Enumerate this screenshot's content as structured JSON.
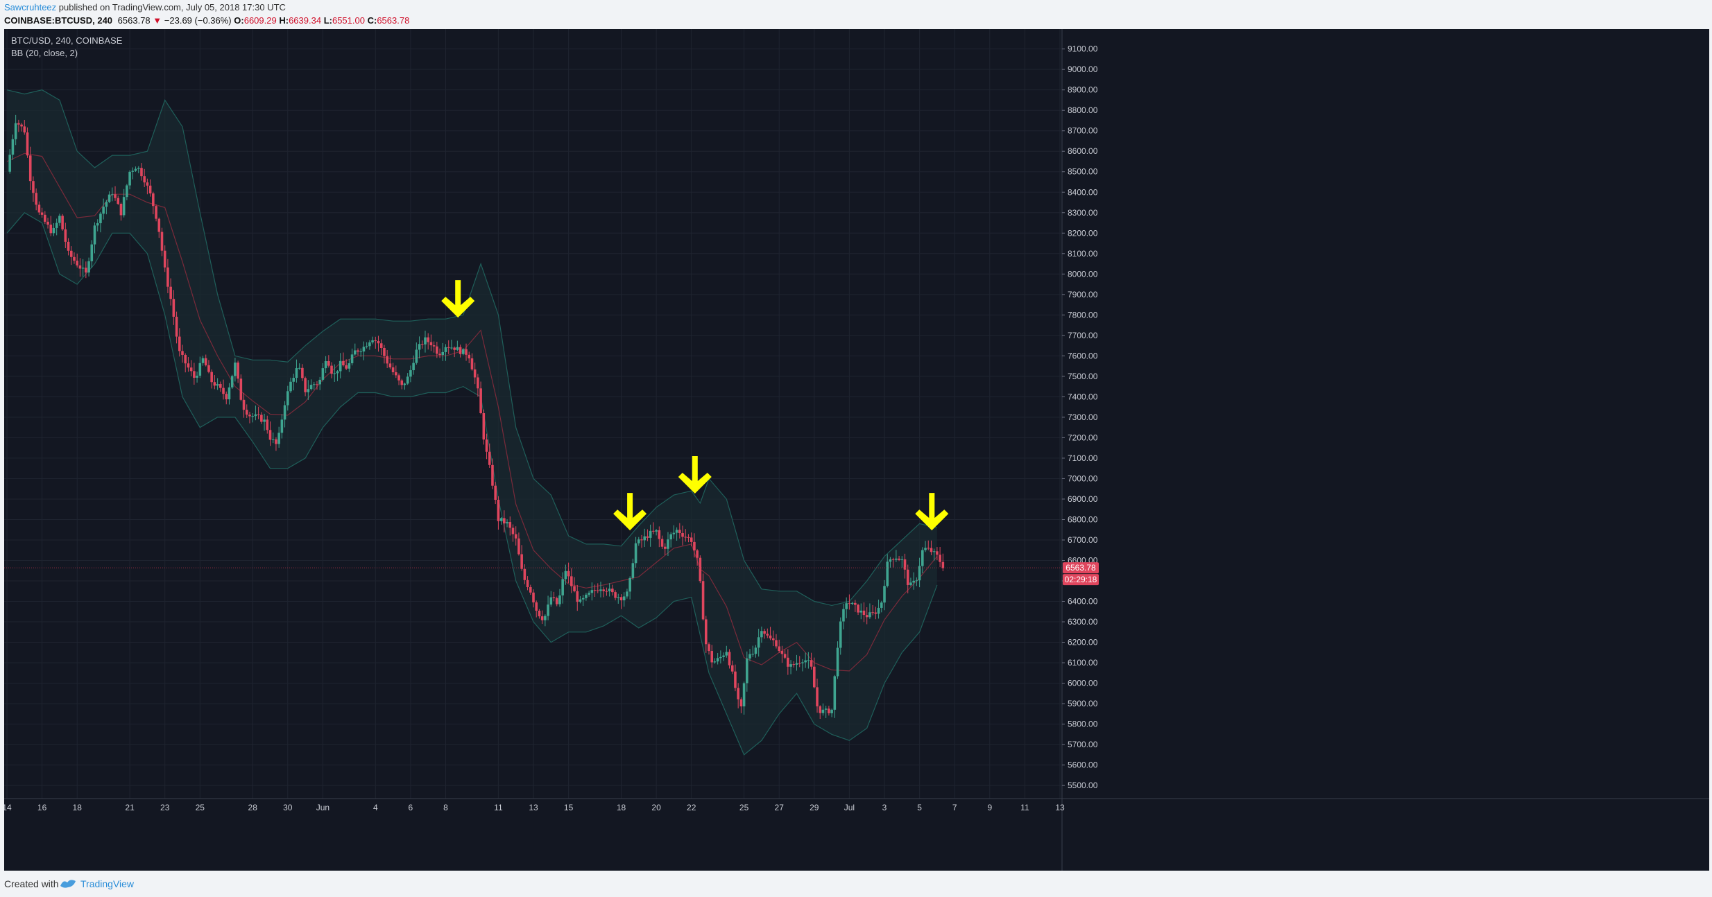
{
  "header": {
    "author": "Sawcruhteez",
    "published_text": "published on TradingView.com, July 05, 2018 17:30 UTC",
    "symbol_full": "COINBASE:BTCUSD, 240",
    "last_price": "6563.78",
    "change_arrow": "▼",
    "change": "−23.69 (−0.36%)",
    "o_label": "O:",
    "open": "6609.29",
    "h_label": "H:",
    "high": "6639.34",
    "l_label": "L:",
    "low": "6551.00",
    "c_label": "C:",
    "close": "6563.78"
  },
  "legend": {
    "symbol": "BTC/USD, 240, COINBASE",
    "indicator": "BB (20, close, 2)"
  },
  "footer": {
    "created_with": "Created with",
    "brand": "TradingView"
  },
  "colors": {
    "background": "#131722",
    "up": "#3fa590",
    "down": "#e0465e",
    "band_fill": "#1a2b30",
    "band_line": "#1f5f5a",
    "basis": "#7a2a3a",
    "arrow": "#ffff00",
    "price_line": "#b03048"
  },
  "price_tags": {
    "last": "6563.78",
    "countdown": "02:29:18"
  },
  "chart_data": {
    "type": "candlestick",
    "y_ticks": [
      5500,
      5600,
      5700,
      5800,
      5900,
      6000,
      6100,
      6200,
      6300,
      6400,
      6500,
      6600,
      6700,
      6800,
      6900,
      7000,
      7100,
      7200,
      7300,
      7400,
      7500,
      7600,
      7700,
      7800,
      7900,
      8000,
      8100,
      8200,
      8300,
      8400,
      8500,
      8600,
      8700,
      8800,
      8900,
      9000,
      9100
    ],
    "ylim": [
      5470,
      9170
    ],
    "x_labels": [
      {
        "label": "14",
        "day": 0
      },
      {
        "label": "16",
        "day": 2
      },
      {
        "label": "18",
        "day": 4
      },
      {
        "label": "21",
        "day": 7
      },
      {
        "label": "23",
        "day": 9
      },
      {
        "label": "25",
        "day": 11
      },
      {
        "label": "28",
        "day": 14
      },
      {
        "label": "30",
        "day": 16
      },
      {
        "label": "Jun",
        "day": 18
      },
      {
        "label": "4",
        "day": 21
      },
      {
        "label": "6",
        "day": 23
      },
      {
        "label": "8",
        "day": 25
      },
      {
        "label": "11",
        "day": 28
      },
      {
        "label": "13",
        "day": 30
      },
      {
        "label": "15",
        "day": 32
      },
      {
        "label": "18",
        "day": 35
      },
      {
        "label": "20",
        "day": 37
      },
      {
        "label": "22",
        "day": 39
      },
      {
        "label": "25",
        "day": 42
      },
      {
        "label": "27",
        "day": 44
      },
      {
        "label": "29",
        "day": 46
      },
      {
        "label": "Jul",
        "day": 48
      },
      {
        "label": "3",
        "day": 50
      },
      {
        "label": "5",
        "day": 52
      },
      {
        "label": "7",
        "day": 54
      },
      {
        "label": "9",
        "day": 56
      },
      {
        "label": "11",
        "day": 58
      },
      {
        "label": "13",
        "day": 60
      }
    ],
    "close_path": [
      [
        0,
        8500
      ],
      [
        0.5,
        8750
      ],
      [
        1,
        8700
      ],
      [
        1.3,
        8480
      ],
      [
        1.8,
        8300
      ],
      [
        2.2,
        8250
      ],
      [
        2.6,
        8200
      ],
      [
        3,
        8280
      ],
      [
        3.5,
        8100
      ],
      [
        4,
        8050
      ],
      [
        4.5,
        8000
      ],
      [
        5,
        8230
      ],
      [
        5.5,
        8330
      ],
      [
        6,
        8400
      ],
      [
        6.5,
        8300
      ],
      [
        7,
        8500
      ],
      [
        7.4,
        8530
      ],
      [
        7.8,
        8470
      ],
      [
        8.2,
        8380
      ],
      [
        8.6,
        8250
      ],
      [
        9,
        8020
      ],
      [
        9.4,
        7850
      ],
      [
        9.8,
        7620
      ],
      [
        10.2,
        7560
      ],
      [
        10.7,
        7490
      ],
      [
        11.2,
        7590
      ],
      [
        11.6,
        7480
      ],
      [
        12,
        7450
      ],
      [
        12.5,
        7400
      ],
      [
        13,
        7560
      ],
      [
        13.4,
        7360
      ],
      [
        13.8,
        7310
      ],
      [
        14.3,
        7300
      ],
      [
        14.7,
        7280
      ],
      [
        15,
        7200
      ],
      [
        15.4,
        7160
      ],
      [
        15.8,
        7360
      ],
      [
        16.2,
        7480
      ],
      [
        16.6,
        7550
      ],
      [
        17,
        7430
      ],
      [
        17.4,
        7460
      ],
      [
        17.8,
        7470
      ],
      [
        18.2,
        7600
      ],
      [
        18.6,
        7500
      ],
      [
        19,
        7560
      ],
      [
        19.4,
        7540
      ],
      [
        19.8,
        7620
      ],
      [
        20.3,
        7640
      ],
      [
        20.8,
        7690
      ],
      [
        21.2,
        7660
      ],
      [
        21.6,
        7580
      ],
      [
        22,
        7520
      ],
      [
        22.5,
        7450
      ],
      [
        22.9,
        7500
      ],
      [
        23.3,
        7620
      ],
      [
        23.8,
        7680
      ],
      [
        24.2,
        7660
      ],
      [
        24.6,
        7610
      ],
      [
        25,
        7650
      ],
      [
        25.5,
        7640
      ],
      [
        25.9,
        7620
      ],
      [
        26.3,
        7610
      ],
      [
        26.8,
        7450
      ],
      [
        27.2,
        7180
      ],
      [
        27.6,
        7010
      ],
      [
        28,
        6800
      ],
      [
        28.5,
        6780
      ],
      [
        29,
        6700
      ],
      [
        29.4,
        6520
      ],
      [
        29.8,
        6460
      ],
      [
        30.2,
        6350
      ],
      [
        30.6,
        6310
      ],
      [
        31,
        6420
      ],
      [
        31.4,
        6380
      ],
      [
        31.8,
        6560
      ],
      [
        32.2,
        6470
      ],
      [
        32.6,
        6390
      ],
      [
        33,
        6420
      ],
      [
        33.4,
        6450
      ],
      [
        33.8,
        6470
      ],
      [
        34.2,
        6460
      ],
      [
        34.6,
        6430
      ],
      [
        35,
        6420
      ],
      [
        35.4,
        6440
      ],
      [
        35.8,
        6680
      ],
      [
        36.2,
        6700
      ],
      [
        36.6,
        6730
      ],
      [
        37,
        6740
      ],
      [
        37.4,
        6650
      ],
      [
        37.8,
        6720
      ],
      [
        38.2,
        6750
      ],
      [
        38.6,
        6720
      ],
      [
        39,
        6700
      ],
      [
        39.4,
        6580
      ],
      [
        39.8,
        6200
      ],
      [
        40.2,
        6100
      ],
      [
        40.6,
        6120
      ],
      [
        41,
        6160
      ],
      [
        41.4,
        6020
      ],
      [
        41.8,
        5850
      ],
      [
        42.2,
        6140
      ],
      [
        42.6,
        6160
      ],
      [
        43,
        6270
      ],
      [
        43.4,
        6220
      ],
      [
        43.8,
        6200
      ],
      [
        44.2,
        6130
      ],
      [
        44.6,
        6080
      ],
      [
        45,
        6100
      ],
      [
        45.4,
        6120
      ],
      [
        45.8,
        6090
      ],
      [
        46.2,
        5870
      ],
      [
        46.6,
        5860
      ],
      [
        47,
        5870
      ],
      [
        47.4,
        6250
      ],
      [
        47.8,
        6400
      ],
      [
        48.2,
        6380
      ],
      [
        48.6,
        6350
      ],
      [
        49,
        6330
      ],
      [
        49.4,
        6340
      ],
      [
        49.8,
        6380
      ],
      [
        50.2,
        6600
      ],
      [
        50.6,
        6620
      ],
      [
        51,
        6600
      ],
      [
        51.4,
        6470
      ],
      [
        51.8,
        6500
      ],
      [
        52.2,
        6660
      ],
      [
        52.6,
        6650
      ],
      [
        53,
        6620
      ],
      [
        53.4,
        6563.78
      ]
    ],
    "bb_upper": [
      [
        0,
        8900
      ],
      [
        1,
        8880
      ],
      [
        2,
        8900
      ],
      [
        3,
        8850
      ],
      [
        4,
        8600
      ],
      [
        5,
        8520
      ],
      [
        6,
        8580
      ],
      [
        7,
        8580
      ],
      [
        8,
        8600
      ],
      [
        9,
        8850
      ],
      [
        10,
        8720
      ],
      [
        11,
        8300
      ],
      [
        12,
        7900
      ],
      [
        13,
        7600
      ],
      [
        14,
        7580
      ],
      [
        15,
        7580
      ],
      [
        16,
        7570
      ],
      [
        17,
        7650
      ],
      [
        18,
        7720
      ],
      [
        19,
        7780
      ],
      [
        20,
        7780
      ],
      [
        21,
        7780
      ],
      [
        22,
        7770
      ],
      [
        23,
        7770
      ],
      [
        24,
        7780
      ],
      [
        25,
        7780
      ],
      [
        26,
        7800
      ],
      [
        27,
        8050
      ],
      [
        28,
        7800
      ],
      [
        29,
        7250
      ],
      [
        30,
        7000
      ],
      [
        31,
        6920
      ],
      [
        32,
        6720
      ],
      [
        33,
        6680
      ],
      [
        34,
        6680
      ],
      [
        35,
        6670
      ],
      [
        36,
        6770
      ],
      [
        37,
        6860
      ],
      [
        38,
        6920
      ],
      [
        39,
        6940
      ],
      [
        39.5,
        6880
      ],
      [
        40,
        7000
      ],
      [
        41,
        6900
      ],
      [
        42,
        6600
      ],
      [
        43,
        6460
      ],
      [
        44,
        6450
      ],
      [
        45,
        6450
      ],
      [
        46,
        6400
      ],
      [
        47,
        6380
      ],
      [
        48,
        6400
      ],
      [
        49,
        6500
      ],
      [
        50,
        6620
      ],
      [
        51,
        6700
      ],
      [
        52,
        6780
      ],
      [
        53,
        6760
      ]
    ],
    "bb_lower": [
      [
        0,
        8200
      ],
      [
        1,
        8300
      ],
      [
        2,
        8250
      ],
      [
        3,
        8000
      ],
      [
        4,
        7950
      ],
      [
        5,
        8050
      ],
      [
        6,
        8200
      ],
      [
        7,
        8200
      ],
      [
        8,
        8100
      ],
      [
        9,
        7800
      ],
      [
        10,
        7400
      ],
      [
        11,
        7250
      ],
      [
        12,
        7300
      ],
      [
        13,
        7300
      ],
      [
        14,
        7180
      ],
      [
        15,
        7050
      ],
      [
        16,
        7050
      ],
      [
        17,
        7100
      ],
      [
        18,
        7250
      ],
      [
        19,
        7350
      ],
      [
        20,
        7420
      ],
      [
        21,
        7420
      ],
      [
        22,
        7400
      ],
      [
        23,
        7400
      ],
      [
        24,
        7420
      ],
      [
        25,
        7420
      ],
      [
        26,
        7450
      ],
      [
        27,
        7400
      ],
      [
        28,
        6900
      ],
      [
        29,
        6500
      ],
      [
        30,
        6300
      ],
      [
        31,
        6200
      ],
      [
        32,
        6250
      ],
      [
        33,
        6250
      ],
      [
        34,
        6280
      ],
      [
        35,
        6330
      ],
      [
        36,
        6270
      ],
      [
        37,
        6320
      ],
      [
        38,
        6400
      ],
      [
        39,
        6420
      ],
      [
        40,
        6050
      ],
      [
        41,
        5850
      ],
      [
        42,
        5650
      ],
      [
        43,
        5720
      ],
      [
        44,
        5850
      ],
      [
        45,
        5950
      ],
      [
        46,
        5800
      ],
      [
        47,
        5750
      ],
      [
        48,
        5720
      ],
      [
        49,
        5780
      ],
      [
        50,
        6000
      ],
      [
        51,
        6150
      ],
      [
        52,
        6250
      ],
      [
        53,
        6480
      ]
    ],
    "arrows": [
      {
        "day": 25.7,
        "price": 7760
      },
      {
        "day": 35.5,
        "price": 6720
      },
      {
        "day": 39.2,
        "price": 6900
      },
      {
        "day": 52.7,
        "price": 6720
      }
    ],
    "last_price": 6563.78
  }
}
